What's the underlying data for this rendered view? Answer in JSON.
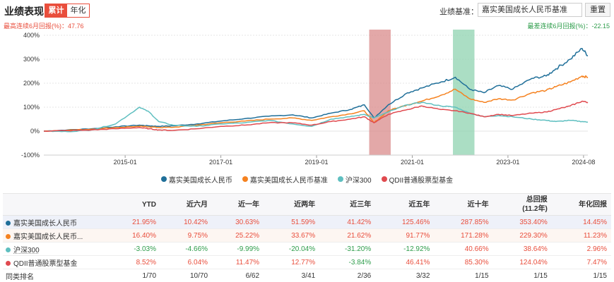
{
  "header": {
    "title": "业绩表现",
    "tabs": [
      {
        "label": "累计",
        "active": true
      },
      {
        "label": "年化",
        "active": false
      }
    ],
    "benchmark_label": "业绩基准：",
    "benchmark_value": "嘉实美国成长人民币基准",
    "reset_label": "重置"
  },
  "max_drawdown_text": "最高连续6月回报(%)：47.76",
  "min_drawdown_text": "最差连续6月回报(%)：-22.15",
  "colors": {
    "accent": "#e94e3c",
    "fund": "#1f6f99",
    "benchmark": "#f58220",
    "hs300": "#5fbfc0",
    "qdii": "#e04a4f",
    "highlight_red": "#d98b8b",
    "highlight_green": "#8fd3b0",
    "positive": "#e94e3c",
    "negative": "#2e9d4b"
  },
  "chart_data": {
    "type": "line",
    "x_ticks": [
      "2015-01",
      "2017-01",
      "2019-01",
      "2021-01",
      "2023-01",
      "2024-08"
    ],
    "y_ticks": [
      "400%",
      "300%",
      "200%",
      "100%",
      "0%",
      "-100%"
    ],
    "ylim": [
      -100,
      400
    ],
    "xlim": [
      2013.3,
      2024.67
    ],
    "highlight_bands": [
      {
        "start": 2020.1,
        "end": 2020.55,
        "kind": "max"
      },
      {
        "start": 2021.85,
        "end": 2022.3,
        "kind": "min"
      }
    ],
    "x": [
      2013.3,
      2013.8,
      2014.3,
      2014.8,
      2015.3,
      2015.5,
      2015.7,
      2016.0,
      2016.5,
      2017.0,
      2017.5,
      2018.0,
      2018.5,
      2018.9,
      2019.3,
      2019.7,
      2020.0,
      2020.2,
      2020.5,
      2020.9,
      2021.2,
      2021.6,
      2021.9,
      2022.2,
      2022.5,
      2022.8,
      2023.1,
      2023.5,
      2023.8,
      2024.0,
      2024.3,
      2024.55,
      2024.67
    ],
    "series": [
      {
        "name": "嘉实美国成长人民币",
        "values": [
          0,
          5,
          10,
          18,
          25,
          22,
          20,
          22,
          30,
          42,
          52,
          62,
          68,
          55,
          75,
          90,
          110,
          55,
          110,
          160,
          180,
          205,
          225,
          175,
          160,
          190,
          175,
          220,
          230,
          260,
          300,
          345,
          315
        ]
      },
      {
        "name": "嘉实美国成长人民币基准",
        "values": [
          0,
          4,
          8,
          15,
          20,
          18,
          15,
          16,
          25,
          35,
          42,
          50,
          55,
          45,
          60,
          72,
          85,
          35,
          85,
          110,
          125,
          150,
          175,
          135,
          120,
          135,
          130,
          160,
          170,
          185,
          205,
          230,
          225
        ]
      },
      {
        "name": "沪深300",
        "values": [
          0,
          -2,
          5,
          30,
          100,
          80,
          40,
          25,
          20,
          30,
          35,
          45,
          30,
          20,
          50,
          60,
          70,
          55,
          80,
          110,
          120,
          105,
          100,
          75,
          60,
          65,
          60,
          50,
          45,
          40,
          45,
          40,
          38
        ]
      },
      {
        "name": "QDII普通股票型基金",
        "values": [
          0,
          2,
          5,
          10,
          15,
          10,
          5,
          3,
          10,
          20,
          25,
          35,
          35,
          25,
          40,
          50,
          60,
          35,
          70,
          90,
          105,
          90,
          85,
          75,
          60,
          70,
          65,
          75,
          80,
          90,
          105,
          125,
          120
        ]
      }
    ]
  },
  "table": {
    "headers": [
      "",
      "YTD",
      "近六月",
      "近一年",
      "近两年",
      "近三年",
      "近五年",
      "近十年",
      "总回报\n(11.2年)",
      "年化回报"
    ],
    "rows": [
      {
        "name": "嘉实美国成长人民币",
        "dot": "#1f6f99",
        "cells": [
          "21.95%",
          "10.42%",
          "30.63%",
          "51.59%",
          "41.42%",
          "125.46%",
          "287.85%",
          "353.40%",
          "14.45%"
        ]
      },
      {
        "name": "嘉实美国成长人民币...",
        "dot": "#f58220",
        "cells": [
          "16.40%",
          "9.75%",
          "25.22%",
          "33.67%",
          "21.62%",
          "91.77%",
          "171.28%",
          "229.30%",
          "11.23%"
        ]
      },
      {
        "name": "沪深300",
        "dot": "#5fbfc0",
        "cells": [
          "-3.03%",
          "-4.66%",
          "-9.99%",
          "-20.04%",
          "-31.20%",
          "-12.92%",
          "40.66%",
          "38.64%",
          "2.96%"
        ]
      },
      {
        "name": "QDII普通股票型基金",
        "dot": "#e04a4f",
        "cells": [
          "8.52%",
          "6.04%",
          "11.47%",
          "12.77%",
          "-3.84%",
          "46.41%",
          "85.30%",
          "124.04%",
          "7.47%"
        ]
      },
      {
        "name": "同类排名",
        "dot": "",
        "cells": [
          "1/70",
          "10/70",
          "6/62",
          "3/41",
          "2/36",
          "3/32",
          "1/15",
          "1/15",
          "1/15"
        ]
      }
    ]
  }
}
